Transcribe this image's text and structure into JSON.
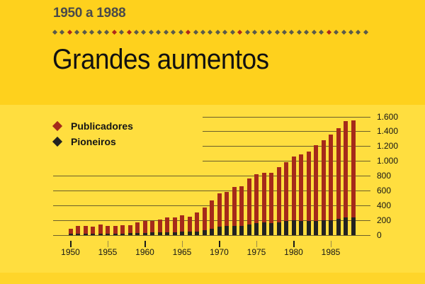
{
  "header": {
    "subtitle": "1950 a 1988",
    "title": "Grandes aumentos"
  },
  "colors": {
    "header_bg": "#FED11D",
    "chart_bg": "#FFDE3F",
    "publicadores": "#A52A1A",
    "pioneiros": "#222222",
    "dot_gray": "#5a5a4a",
    "dot_red": "#B0281A"
  },
  "legend": [
    {
      "label": "Publicadores",
      "color": "#A52A1A"
    },
    {
      "label": "Pioneiros",
      "color": "#222222"
    }
  ],
  "chart_data": {
    "type": "bar",
    "stacked": true,
    "title": "Grandes aumentos",
    "subtitle": "1950 a 1988",
    "xlabel": "",
    "ylabel": "",
    "ylim": [
      0,
      1600
    ],
    "yticks": [
      "0",
      "200",
      "400",
      "600",
      "800",
      "1.000",
      "1.200",
      "1.400",
      "1.600"
    ],
    "xticks": [
      "1950",
      "1955",
      "1960",
      "1965",
      "1970",
      "1975",
      "1980",
      "1985"
    ],
    "grid": true,
    "legend_position": "top-left",
    "categories": [
      1950,
      1951,
      1952,
      1953,
      1954,
      1955,
      1956,
      1957,
      1958,
      1959,
      1960,
      1961,
      1962,
      1963,
      1964,
      1965,
      1966,
      1967,
      1968,
      1969,
      1970,
      1971,
      1972,
      1973,
      1974,
      1975,
      1976,
      1977,
      1978,
      1979,
      1980,
      1981,
      1982,
      1983,
      1984,
      1985,
      1986,
      1987,
      1988
    ],
    "series": [
      {
        "name": "Publicadores",
        "values": [
          85,
          122,
          127,
          118,
          144,
          122,
          122,
          131,
          131,
          172,
          194,
          194,
          214,
          240,
          240,
          268,
          249,
          307,
          371,
          469,
          562,
          584,
          648,
          658,
          763,
          822,
          844,
          844,
          914,
          981,
          1063,
          1092,
          1124,
          1215,
          1282,
          1352,
          1444,
          1536,
          1546
        ]
      },
      {
        "name": "Pioneiros",
        "values": [
          15,
          18,
          18,
          18,
          20,
          20,
          22,
          22,
          24,
          28,
          32,
          34,
          36,
          38,
          40,
          45,
          48,
          51,
          67,
          86,
          115,
          125,
          125,
          125,
          144,
          165,
          168,
          165,
          168,
          190,
          196,
          190,
          187,
          187,
          196,
          200,
          222,
          241,
          241
        ]
      }
    ]
  }
}
